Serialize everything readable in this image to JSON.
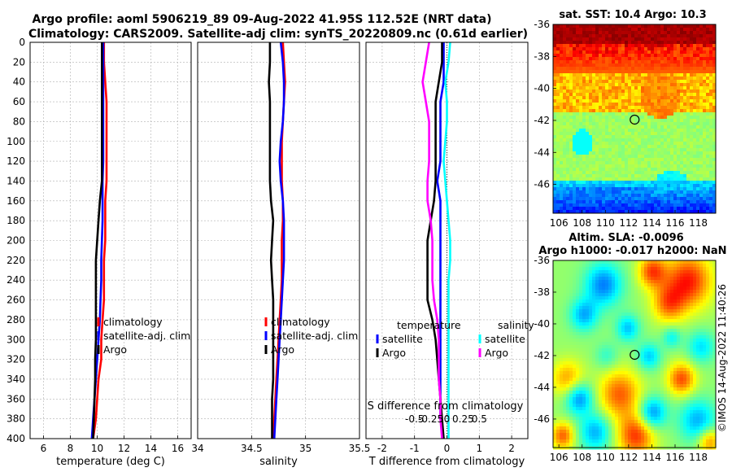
{
  "titles": {
    "line1": "Argo profile: aoml 5906219_89 09-Aug-2022 41.95S 112.52E (NRT data)",
    "line2": "Climatology: CARS2009. Satellite-adj clim: synTS_20220809.nc (0.61d earlier)"
  },
  "signature": "©IMOS 14-Aug-2022 11:40:26",
  "colors": {
    "climatology": "#ff0000",
    "satellite": "#0000ff",
    "argo": "#000000",
    "t_sat": "#0000ff",
    "s_sat": "#00ffff",
    "t_argo": "#000000",
    "s_argo": "#ff00ff",
    "grid": "#b0b0b0"
  },
  "chart_data": [
    {
      "id": "temperature",
      "type": "line",
      "xlabel": "temperature (deg C)",
      "xlim": [
        5,
        17
      ],
      "ylim": [
        400,
        0
      ],
      "xticks": [
        6,
        8,
        10,
        12,
        14,
        16
      ],
      "xtick_labels": [
        "6",
        "8",
        "10",
        "12",
        "14",
        "16"
      ],
      "yticks": [
        0,
        20,
        40,
        60,
        80,
        100,
        120,
        140,
        160,
        180,
        200,
        220,
        240,
        260,
        280,
        300,
        320,
        340,
        360,
        380,
        400
      ],
      "ytick_labels": [
        "0",
        "20",
        "40",
        "60",
        "80",
        "100",
        "120",
        "140",
        "160",
        "180",
        "200",
        "220",
        "240",
        "260",
        "280",
        "300",
        "320",
        "340",
        "360",
        "380",
        "400"
      ],
      "legend": [
        "climatology",
        "satellite-adj. clim",
        "Argo"
      ],
      "series": [
        {
          "name": "climatology",
          "color": "#ff0000",
          "x": [
            10.5,
            10.5,
            10.6,
            10.7,
            10.7,
            10.7,
            10.7,
            10.7,
            10.6,
            10.6,
            10.6,
            10.5,
            10.5,
            10.5,
            10.4,
            10.3,
            10.3,
            10.1,
            10.0,
            9.9,
            9.7
          ],
          "y": [
            0,
            20,
            40,
            60,
            80,
            100,
            120,
            140,
            160,
            180,
            200,
            220,
            240,
            260,
            280,
            300,
            320,
            340,
            360,
            380,
            400
          ]
        },
        {
          "name": "satellite-adj. clim",
          "color": "#0000ff",
          "x": [
            10.45,
            10.45,
            10.45,
            10.45,
            10.45,
            10.45,
            10.45,
            10.4,
            10.4,
            10.4,
            10.35,
            10.3,
            10.3,
            10.25,
            10.2,
            10.1,
            10.0,
            9.9,
            9.8,
            9.7,
            9.6
          ],
          "y": [
            0,
            20,
            40,
            60,
            80,
            100,
            120,
            140,
            160,
            180,
            200,
            220,
            240,
            260,
            280,
            300,
            320,
            340,
            360,
            380,
            400
          ]
        },
        {
          "name": "Argo",
          "color": "#000000",
          "x": [
            10.35,
            10.35,
            10.35,
            10.35,
            10.35,
            10.35,
            10.35,
            10.35,
            10.2,
            10.1,
            10.0,
            9.9,
            9.9,
            9.9,
            9.9,
            9.9,
            9.85,
            9.85,
            9.8,
            9.75,
            9.7
          ],
          "y": [
            0,
            20,
            40,
            60,
            80,
            100,
            120,
            140,
            160,
            180,
            200,
            220,
            240,
            260,
            280,
            300,
            320,
            340,
            360,
            380,
            400
          ]
        }
      ]
    },
    {
      "id": "salinity",
      "type": "line",
      "xlabel": "salinity",
      "xlim": [
        34,
        35.5
      ],
      "ylim": [
        400,
        0
      ],
      "xticks": [
        34,
        34.5,
        35,
        35.5
      ],
      "xtick_labels": [
        "34",
        "34.5",
        "35",
        "35.5"
      ],
      "legend": [
        "climatology",
        "satellite-adj. clim",
        "Argo"
      ],
      "series": [
        {
          "name": "climatology",
          "color": "#ff0000",
          "x": [
            34.79,
            34.8,
            34.81,
            34.8,
            34.79,
            34.78,
            34.78,
            34.78,
            34.79,
            34.79,
            34.78,
            34.78,
            34.78,
            34.77,
            34.76,
            34.75,
            34.74,
            34.73,
            34.72,
            34.71,
            34.7
          ],
          "y": [
            0,
            20,
            40,
            60,
            80,
            100,
            120,
            140,
            160,
            180,
            200,
            220,
            240,
            260,
            280,
            300,
            320,
            340,
            360,
            380,
            400
          ]
        },
        {
          "name": "satellite-adj. clim",
          "color": "#0000ff",
          "x": [
            34.77,
            34.79,
            34.8,
            34.8,
            34.79,
            34.77,
            34.76,
            34.77,
            34.79,
            34.8,
            34.8,
            34.8,
            34.79,
            34.78,
            34.77,
            34.76,
            34.75,
            34.74,
            34.73,
            34.72,
            34.71
          ],
          "y": [
            0,
            20,
            40,
            60,
            80,
            100,
            120,
            140,
            160,
            180,
            200,
            220,
            240,
            260,
            280,
            300,
            320,
            340,
            360,
            380,
            400
          ]
        },
        {
          "name": "Argo",
          "color": "#000000",
          "x": [
            34.67,
            34.67,
            34.66,
            34.67,
            34.67,
            34.67,
            34.67,
            34.67,
            34.68,
            34.7,
            34.69,
            34.68,
            34.69,
            34.7,
            34.7,
            34.7,
            34.7,
            34.7,
            34.69,
            34.69,
            34.69
          ],
          "y": [
            0,
            20,
            40,
            60,
            80,
            100,
            120,
            140,
            160,
            180,
            200,
            220,
            240,
            260,
            280,
            300,
            320,
            340,
            360,
            380,
            400
          ]
        }
      ]
    },
    {
      "id": "difference",
      "type": "line",
      "xlabel": "T difference from climatology",
      "xlabel_top": "S difference from climatology",
      "xlim": [
        -2.5,
        2.5
      ],
      "ylim": [
        400,
        0
      ],
      "xticks": [
        -2,
        -1,
        0,
        1,
        2
      ],
      "xtick_labels": [
        "-2",
        "-1",
        "0",
        "1",
        "2"
      ],
      "top_tick_labels": [
        "-0.5",
        "-0.25",
        "0",
        "0.25",
        "0.5"
      ],
      "legend_groups": [
        {
          "heading": "temperature",
          "items": [
            "satellite",
            "Argo"
          ]
        },
        {
          "heading": "salinity",
          "items": [
            "satellite",
            "Argo"
          ]
        }
      ],
      "series": [
        {
          "name": "temperature satellite",
          "color": "#0000ff",
          "x": [
            -0.1,
            -0.1,
            -0.1,
            -0.2,
            -0.2,
            -0.2,
            -0.2,
            -0.3,
            -0.2,
            -0.2,
            -0.2,
            -0.2,
            -0.2,
            -0.2,
            -0.2,
            -0.2,
            -0.2,
            -0.2,
            -0.2,
            -0.2,
            -0.1
          ],
          "y": [
            0,
            20,
            40,
            60,
            80,
            100,
            120,
            140,
            160,
            180,
            200,
            220,
            240,
            260,
            280,
            300,
            320,
            340,
            360,
            380,
            400
          ]
        },
        {
          "name": "salinity satellite",
          "color": "#00ffff",
          "x": [
            0.1,
            0.05,
            -0.05,
            0.0,
            0.0,
            -0.05,
            -0.1,
            -0.05,
            0.0,
            0.05,
            0.1,
            0.1,
            0.05,
            0.05,
            0.05,
            0.05,
            0.05,
            0.05,
            0.05,
            0.05,
            0.05
          ],
          "y": [
            0,
            20,
            40,
            60,
            80,
            100,
            120,
            140,
            160,
            180,
            200,
            220,
            240,
            260,
            280,
            300,
            320,
            340,
            360,
            380,
            400
          ]
        },
        {
          "name": "temperature Argo",
          "color": "#000000",
          "x": [
            -0.15,
            -0.15,
            -0.25,
            -0.35,
            -0.35,
            -0.35,
            -0.35,
            -0.35,
            -0.4,
            -0.5,
            -0.6,
            -0.6,
            -0.6,
            -0.6,
            -0.45,
            -0.35,
            -0.3,
            -0.25,
            -0.2,
            -0.15,
            -0.1
          ],
          "y": [
            0,
            20,
            40,
            60,
            80,
            100,
            120,
            140,
            160,
            180,
            200,
            220,
            240,
            260,
            280,
            300,
            320,
            340,
            360,
            380,
            400
          ]
        },
        {
          "name": "salinity Argo",
          "color": "#ff00ff",
          "x": [
            -0.55,
            -0.65,
            -0.75,
            -0.65,
            -0.55,
            -0.55,
            -0.55,
            -0.6,
            -0.6,
            -0.5,
            -0.45,
            -0.45,
            -0.45,
            -0.4,
            -0.3,
            -0.25,
            -0.25,
            -0.25,
            -0.2,
            -0.2,
            -0.15
          ],
          "y": [
            0,
            20,
            40,
            60,
            80,
            100,
            120,
            140,
            160,
            180,
            200,
            220,
            240,
            260,
            280,
            300,
            320,
            340,
            360,
            380,
            400
          ]
        }
      ]
    },
    {
      "id": "sst_map",
      "type": "heatmap",
      "title": "sat. SST: 10.4 Argo: 10.3",
      "xlim": [
        105.5,
        119.5
      ],
      "ylim": [
        -47.8,
        -36
      ],
      "xticks": [
        106,
        108,
        110,
        112,
        114,
        116,
        118
      ],
      "xtick_labels": [
        "106",
        "108",
        "110",
        "112",
        "114",
        "116",
        "118"
      ],
      "yticks": [
        -36,
        -38,
        -40,
        -42,
        -44,
        -46
      ],
      "ytick_labels": [
        "-36",
        "-38",
        "-40",
        "-42",
        "-44",
        "-46"
      ],
      "marker": {
        "lon": 112.52,
        "lat": -41.95
      }
    },
    {
      "id": "sla_map",
      "type": "heatmap",
      "title_line1": "Altim. SLA: -0.0096",
      "title_line2": "Argo h1000: -0.017 h2000: NaN",
      "xlim": [
        105.5,
        119.5
      ],
      "ylim": [
        -47.8,
        -36
      ],
      "xticks": [
        106,
        108,
        110,
        112,
        114,
        116,
        118
      ],
      "xtick_labels": [
        "106",
        "108",
        "110",
        "112",
        "114",
        "116",
        "118"
      ],
      "yticks": [
        -36,
        -38,
        -40,
        -42,
        -44,
        -46
      ],
      "ytick_labels": [
        "-36",
        "-38",
        "-40",
        "-42",
        "-44",
        "-46"
      ],
      "marker": {
        "lon": 112.52,
        "lat": -41.95
      }
    }
  ]
}
